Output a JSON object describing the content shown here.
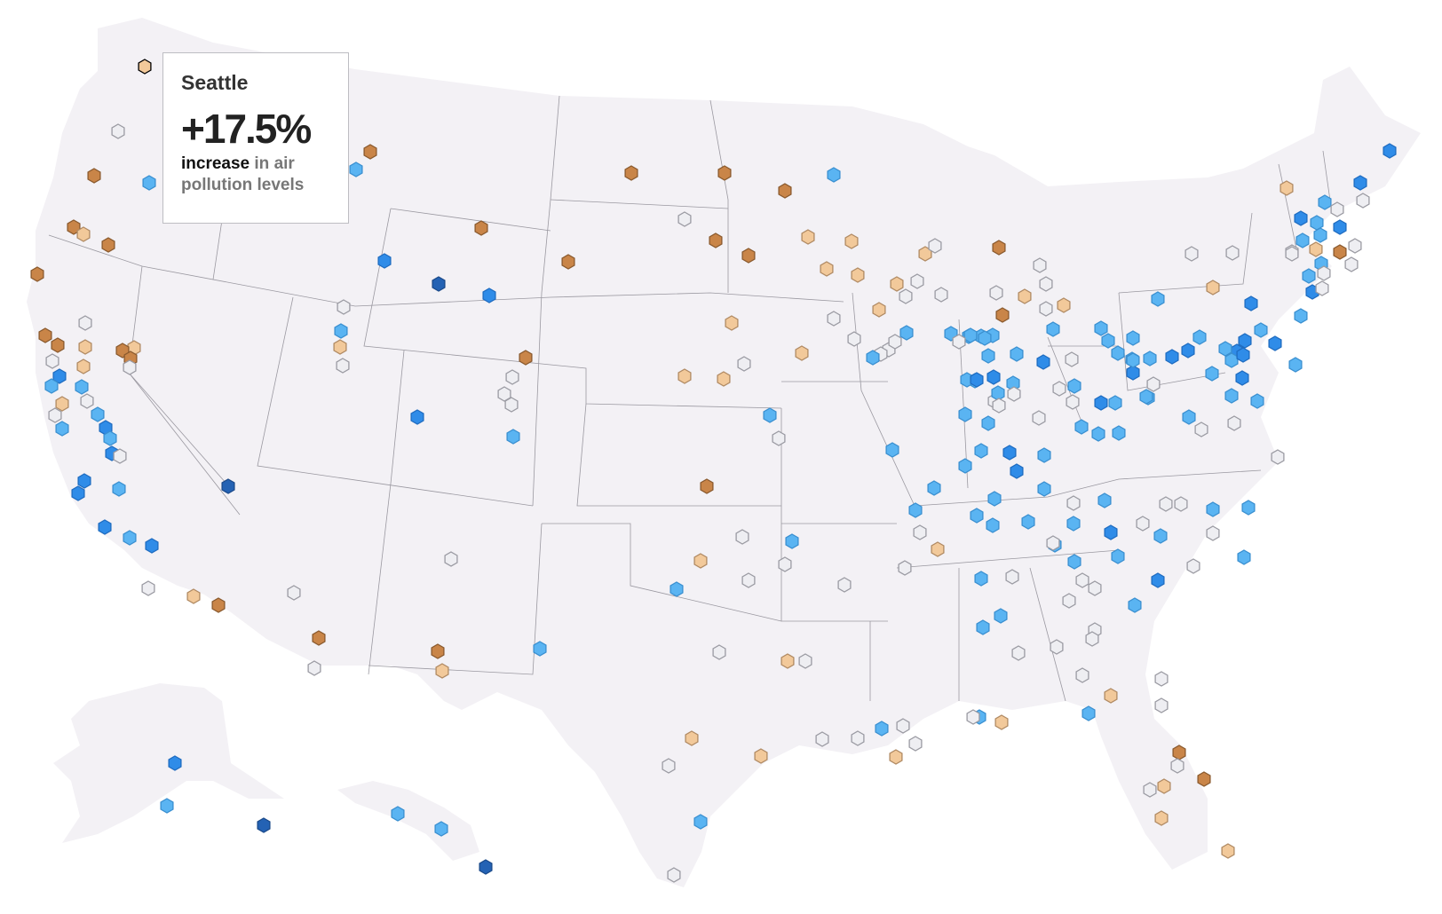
{
  "tooltip": {
    "city": "Seattle",
    "value": "+17.5%",
    "direction": "increase",
    "description": "in air pollution levels"
  },
  "colors": {
    "land": "#f3f1f5",
    "border": "#9a98a0",
    "increase_high": "#c98548",
    "increase_low": "#f2c99a",
    "neutral": "#eeeef2",
    "decrease_low": "#5ab4f2",
    "decrease_mid": "#2f8ce8",
    "decrease_high": "#2462b4"
  },
  "legend_categories": [
    "increase_high",
    "increase_low",
    "neutral",
    "decrease_low",
    "decrease_mid",
    "decrease_high"
  ],
  "selected_city": "Seattle"
}
